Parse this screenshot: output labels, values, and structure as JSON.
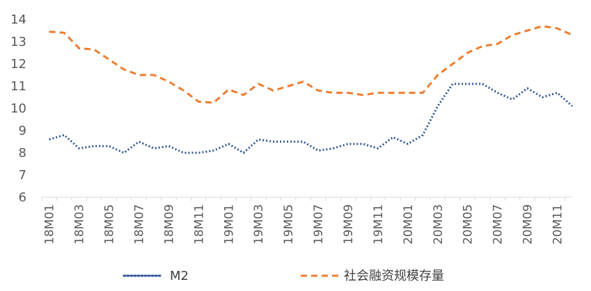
{
  "chart_data": {
    "type": "line",
    "title": "",
    "xlabel": "",
    "ylabel": "",
    "ylim": [
      6,
      14
    ],
    "yticks": [
      6,
      7,
      8,
      9,
      10,
      11,
      12,
      13,
      14
    ],
    "grid": false,
    "legend_position": "bottom",
    "x": [
      "18M01",
      "18M02",
      "18M03",
      "18M04",
      "18M05",
      "18M06",
      "18M07",
      "18M08",
      "18M09",
      "18M10",
      "18M11",
      "18M12",
      "19M01",
      "19M02",
      "19M03",
      "19M04",
      "19M05",
      "19M06",
      "19M07",
      "19M08",
      "19M09",
      "19M10",
      "19M11",
      "19M12",
      "20M01",
      "20M02",
      "20M03",
      "20M04",
      "20M05",
      "20M06",
      "20M07",
      "20M08",
      "20M09",
      "20M10",
      "20M11",
      "20M12"
    ],
    "x_tick_labels": [
      "18M01",
      "18M03",
      "18M05",
      "18M07",
      "18M09",
      "18M11",
      "19M01",
      "19M03",
      "19M05",
      "19M07",
      "19M09",
      "19M11",
      "20M01",
      "20M03",
      "20M05",
      "20M07",
      "20M09",
      "20M11"
    ],
    "series": [
      {
        "name": "M2",
        "color": "#2f5597",
        "style": "dotted",
        "values": [
          8.6,
          8.8,
          8.2,
          8.3,
          8.3,
          8.0,
          8.5,
          8.2,
          8.3,
          8.0,
          8.0,
          8.1,
          8.4,
          8.0,
          8.6,
          8.5,
          8.5,
          8.5,
          8.1,
          8.2,
          8.4,
          8.4,
          8.2,
          8.7,
          8.4,
          8.8,
          10.1,
          11.1,
          11.1,
          11.1,
          10.7,
          10.4,
          10.9,
          10.5,
          10.7,
          10.1
        ]
      },
      {
        "name": "社会融资规模存量",
        "color": "#ed7d31",
        "style": "dashed",
        "values": [
          13.45,
          13.4,
          12.7,
          12.65,
          12.2,
          11.75,
          11.5,
          11.5,
          11.2,
          10.8,
          10.3,
          10.25,
          10.85,
          10.6,
          11.1,
          10.8,
          11.0,
          11.2,
          10.8,
          10.7,
          10.7,
          10.6,
          10.7,
          10.7,
          10.7,
          10.7,
          11.5,
          12.0,
          12.5,
          12.8,
          12.9,
          13.3,
          13.5,
          13.7,
          13.6,
          13.3
        ]
      }
    ]
  }
}
